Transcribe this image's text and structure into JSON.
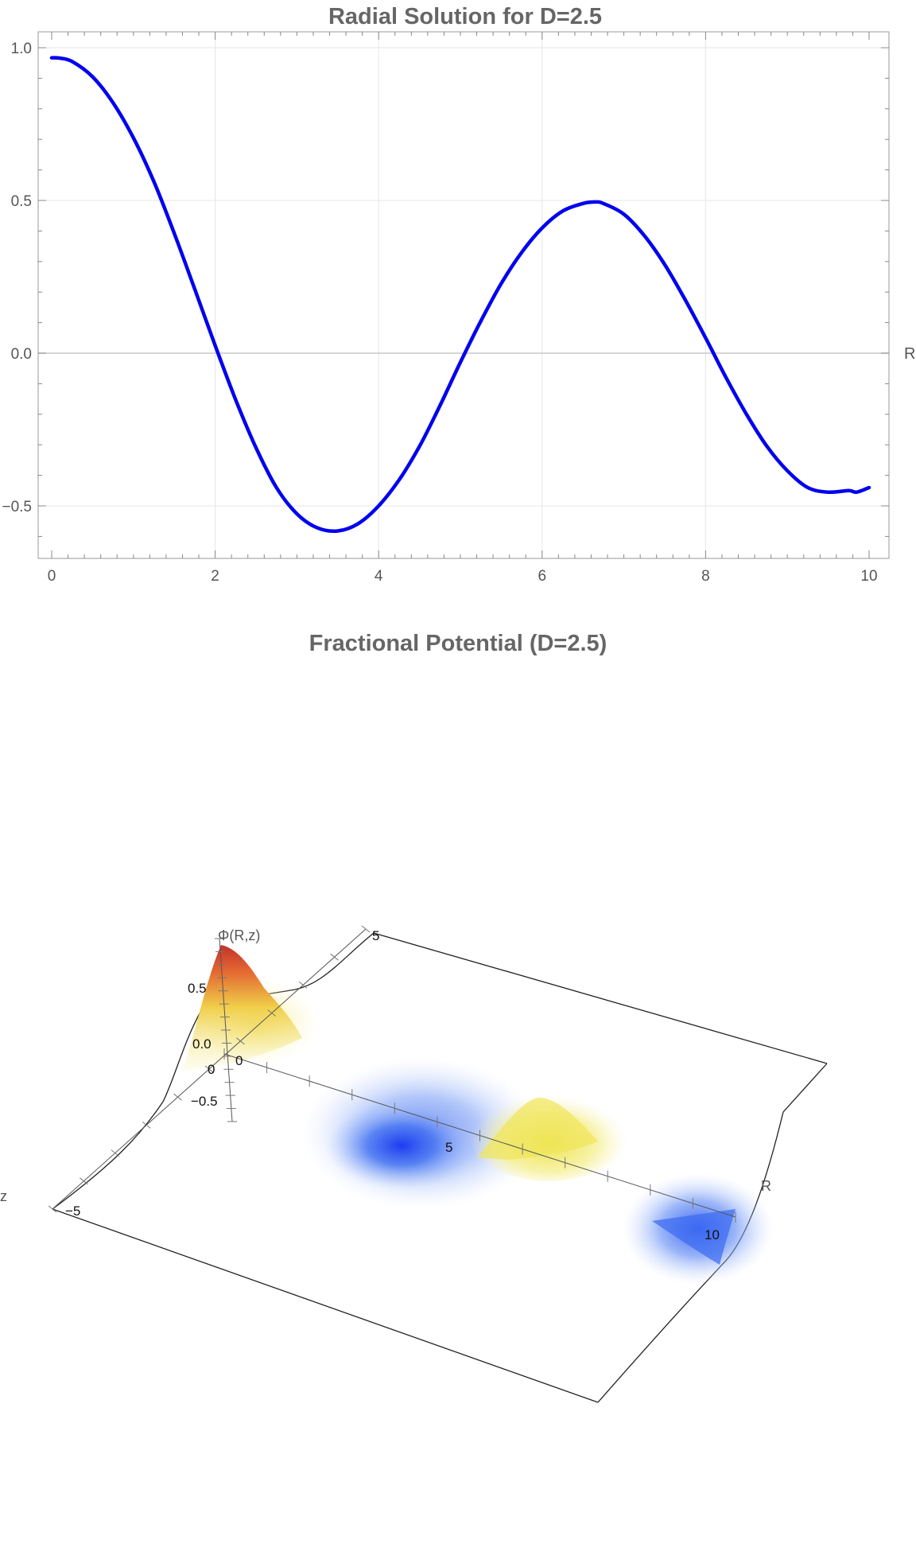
{
  "chart_data": [
    {
      "type": "line",
      "title": "Radial Solution for D=2.5",
      "xlabel": "R",
      "ylabel": "",
      "xlim": [
        0,
        10
      ],
      "ylim": [
        -0.67,
        1.05
      ],
      "grid": true,
      "x_ticks": [
        "0",
        "2",
        "4",
        "6",
        "8",
        "10"
      ],
      "y_ticks": [
        "1.0",
        "0.5",
        "0.0",
        "−0.5"
      ],
      "line_color": "#0000ee",
      "series": [
        {
          "x": [
            0,
            0.1,
            0.25,
            0.5,
            0.75,
            1.0,
            1.25,
            1.5,
            1.75,
            2.0,
            2.25,
            2.5,
            2.75,
            3.0,
            3.25,
            3.5,
            3.75,
            4.0,
            4.25,
            4.5,
            4.75,
            5.0,
            5.25,
            5.5,
            5.75,
            6.0,
            6.25,
            6.5,
            6.65,
            6.75,
            7.0,
            7.25,
            7.5,
            7.75,
            8.0,
            8.25,
            8.5,
            8.75,
            9.0,
            9.25,
            9.5,
            9.75,
            9.85,
            10.0
          ],
          "y": [
            0.967,
            0.966,
            0.955,
            0.905,
            0.82,
            0.705,
            0.562,
            0.392,
            0.21,
            0.025,
            -0.152,
            -0.31,
            -0.44,
            -0.526,
            -0.572,
            -0.582,
            -0.558,
            -0.5,
            -0.415,
            -0.305,
            -0.172,
            -0.03,
            0.105,
            0.228,
            0.33,
            0.41,
            0.465,
            0.49,
            0.495,
            0.49,
            0.455,
            0.385,
            0.29,
            0.175,
            0.05,
            -0.08,
            -0.2,
            -0.305,
            -0.385,
            -0.44,
            -0.455,
            -0.45,
            -0.455,
            -0.44
          ]
        }
      ]
    },
    {
      "type": "surface",
      "title": "Fractional Potential (D=2.5)",
      "axis_labels": {
        "vertical": "Φ(R,z)",
        "r": "R",
        "z": "z"
      },
      "vertical_ticks": [
        "0.5",
        "0.0",
        "−0.5"
      ],
      "r_ticks": [
        "0",
        "5",
        "10"
      ],
      "z_ticks": [
        "5",
        "−5"
      ],
      "colors": {
        "peak": "#d6402a",
        "positive": "#f5e96a",
        "negative": "#3360f0"
      }
    }
  ]
}
